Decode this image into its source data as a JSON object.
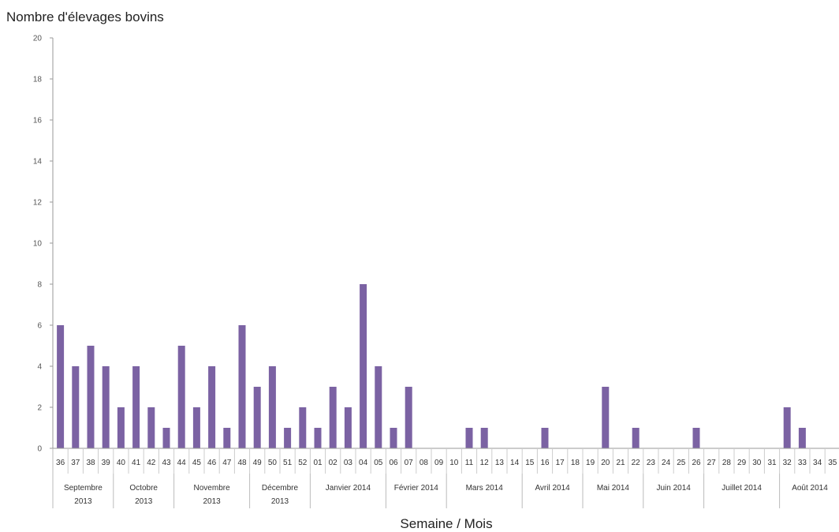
{
  "chart_data": {
    "type": "bar",
    "title": "",
    "ylabel": "Nombre d'élevages bovins",
    "xlabel": "Semaine /  Mois",
    "ylim": [
      0,
      20
    ],
    "yticks": [
      0,
      2,
      4,
      6,
      8,
      10,
      12,
      14,
      16,
      18,
      20
    ],
    "grid": false,
    "bar_color": "#7b62a3",
    "categories": [
      "36",
      "37",
      "38",
      "39",
      "40",
      "41",
      "42",
      "43",
      "44",
      "45",
      "46",
      "47",
      "48",
      "49",
      "50",
      "51",
      "52",
      "01",
      "02",
      "03",
      "04",
      "05",
      "06",
      "07",
      "08",
      "09",
      "10",
      "11",
      "12",
      "13",
      "14",
      "15",
      "16",
      "17",
      "18",
      "19",
      "20",
      "21",
      "22",
      "23",
      "24",
      "25",
      "26",
      "27",
      "28",
      "29",
      "30",
      "31",
      "32",
      "33",
      "34",
      "35"
    ],
    "values": [
      6,
      4,
      5,
      4,
      2,
      4,
      2,
      1,
      5,
      2,
      4,
      1,
      6,
      3,
      4,
      1,
      2,
      1,
      3,
      2,
      8,
      4,
      1,
      3,
      0,
      0,
      0,
      1,
      1,
      0,
      0,
      0,
      1,
      0,
      0,
      0,
      3,
      0,
      1,
      0,
      0,
      0,
      1,
      0,
      0,
      0,
      0,
      0,
      2,
      1,
      0,
      0
    ],
    "months": [
      {
        "label": [
          "Septembre",
          "2013"
        ],
        "weeks": 4
      },
      {
        "label": [
          "Octobre",
          "2013"
        ],
        "weeks": 4
      },
      {
        "label": [
          "Novembre",
          "2013"
        ],
        "weeks": 5
      },
      {
        "label": [
          "Décembre",
          "2013"
        ],
        "weeks": 4
      },
      {
        "label": [
          "Janvier 2014"
        ],
        "weeks": 5
      },
      {
        "label": [
          "Février 2014"
        ],
        "weeks": 4
      },
      {
        "label": [
          "Mars 2014"
        ],
        "weeks": 5
      },
      {
        "label": [
          "Avril 2014"
        ],
        "weeks": 4
      },
      {
        "label": [
          "Mai 2014"
        ],
        "weeks": 4
      },
      {
        "label": [
          "Juin 2014"
        ],
        "weeks": 4
      },
      {
        "label": [
          "Juillet 2014"
        ],
        "weeks": 5
      },
      {
        "label": [
          "Août 2014"
        ],
        "weeks": 4
      }
    ]
  }
}
